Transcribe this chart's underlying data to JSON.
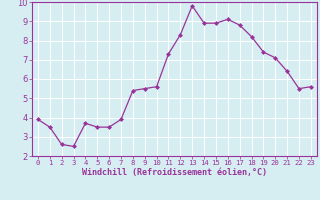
{
  "x": [
    0,
    1,
    2,
    3,
    4,
    5,
    6,
    7,
    8,
    9,
    10,
    11,
    12,
    13,
    14,
    15,
    16,
    17,
    18,
    19,
    20,
    21,
    22,
    23
  ],
  "y": [
    3.9,
    3.5,
    2.6,
    2.5,
    3.7,
    3.5,
    3.5,
    3.9,
    5.4,
    5.5,
    5.6,
    7.3,
    8.3,
    9.8,
    8.9,
    8.9,
    9.1,
    8.8,
    8.2,
    7.4,
    7.1,
    6.4,
    5.5,
    5.6
  ],
  "line_color": "#993399",
  "marker": "D",
  "marker_size": 2,
  "bg_color": "#d6eef2",
  "grid_color": "#ffffff",
  "xlabel": "Windchill (Refroidissement éolien,°C)",
  "xlim": [
    -0.5,
    23.5
  ],
  "ylim": [
    2,
    10
  ],
  "yticks": [
    2,
    3,
    4,
    5,
    6,
    7,
    8,
    9,
    10
  ],
  "xticks": [
    0,
    1,
    2,
    3,
    4,
    5,
    6,
    7,
    8,
    9,
    10,
    11,
    12,
    13,
    14,
    15,
    16,
    17,
    18,
    19,
    20,
    21,
    22,
    23
  ],
  "tick_color": "#993399",
  "label_color": "#993399",
  "spine_color": "#993399",
  "xlabel_fontsize": 6.0,
  "xlabel_fontweight": "bold",
  "xtick_fontsize": 5.2,
  "ytick_fontsize": 6.0,
  "linewidth": 0.9
}
